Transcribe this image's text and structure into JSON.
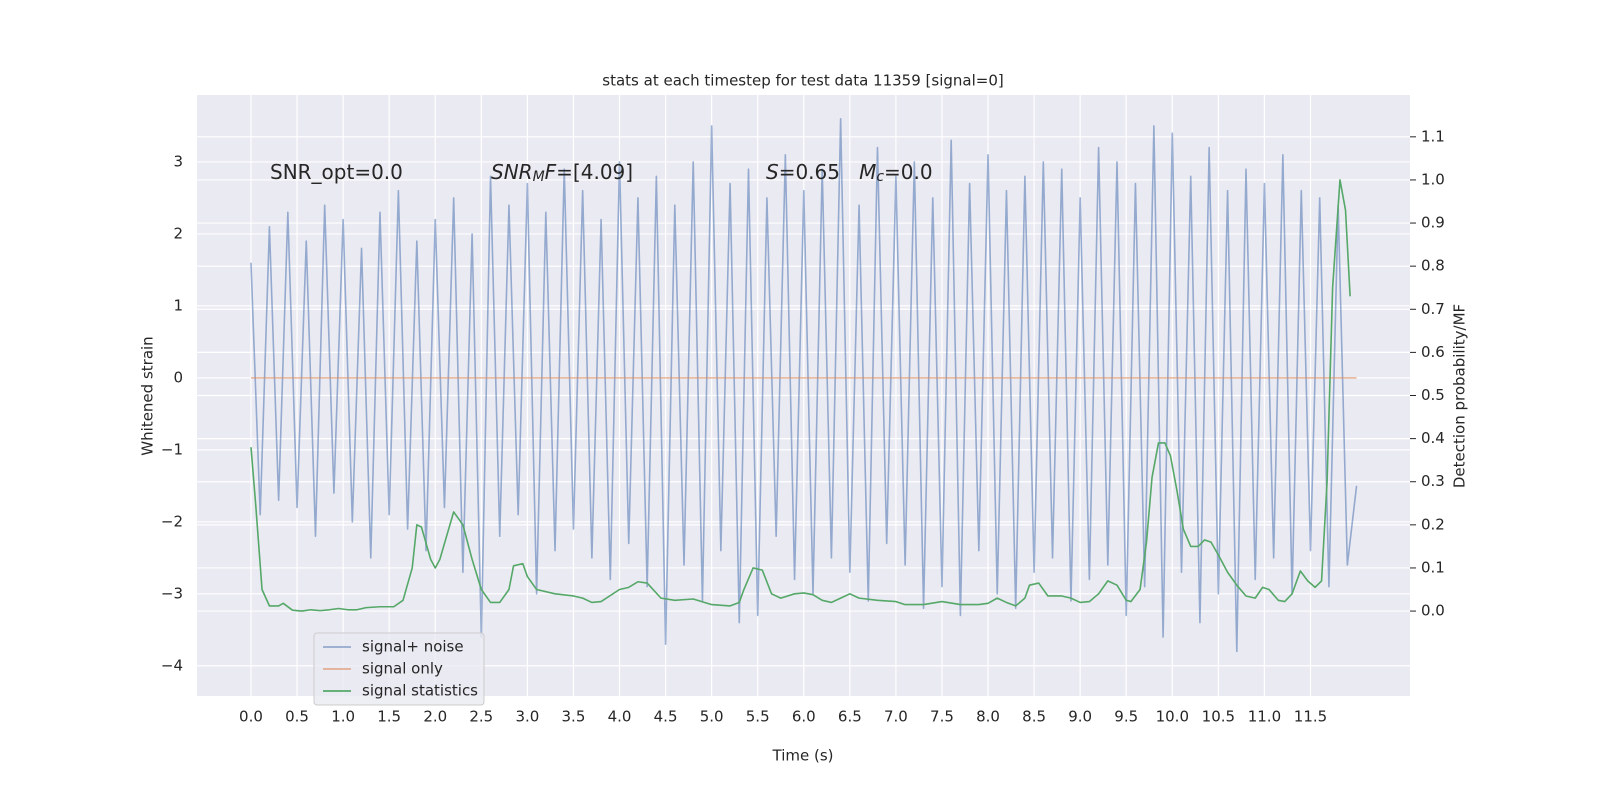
{
  "chart_data": {
    "type": "line",
    "title": "stats at each timestep for test data 11359 [signal=0]",
    "xlabel": "Time (s)",
    "ylabel": "Whitened strain",
    "y2label": "Detection probability/MF",
    "annotations": [
      [
        {
          "text": "SNR_opt=0.0",
          "format": "normal"
        }
      ],
      [
        {
          "text": "SNR",
          "format": "italic"
        },
        {
          "text": "M",
          "format": "sub"
        },
        {
          "text": "F",
          "format": "italic"
        },
        {
          "text": "=[4.09]",
          "format": "normal"
        }
      ],
      [
        {
          "text": "S",
          "format": "italic"
        },
        {
          "text": "=0.65   ",
          "format": "normal"
        },
        {
          "text": "M",
          "format": "italic"
        },
        {
          "text": "c",
          "format": "sub"
        },
        {
          "text": "=0.0",
          "format": "normal"
        }
      ]
    ],
    "xlim": [
      -0.586,
      12.58
    ],
    "ylim": [
      -4.42,
      3.93
    ],
    "y2lim": [
      -0.197,
      1.197
    ],
    "xticks": [
      {
        "value": 0,
        "label": "0.0"
      },
      0.5,
      {
        "value": 1,
        "label": "1.0"
      },
      1.5,
      {
        "value": 2,
        "label": "2.0"
      },
      2.5,
      {
        "value": 3,
        "label": "3.0"
      },
      3.5,
      {
        "value": 4,
        "label": "4.0"
      },
      4.5,
      {
        "value": 5,
        "label": "5.0"
      },
      5.5,
      {
        "value": 6,
        "label": "6.0"
      },
      6.5,
      {
        "value": 7,
        "label": "7.0"
      },
      7.5,
      {
        "value": 8,
        "label": "8.0"
      },
      8.5,
      {
        "value": 9,
        "label": "9.0"
      },
      9.5,
      {
        "value": 10,
        "label": "10.0"
      },
      10.5,
      {
        "value": 11,
        "label": "11.0"
      },
      11.5
    ],
    "yticks": [
      {
        "value": -4,
        "label": "−4"
      },
      {
        "value": -3,
        "label": "−3"
      },
      {
        "value": -2,
        "label": "−2"
      },
      {
        "value": -1,
        "label": "−1"
      },
      0,
      1,
      2,
      3
    ],
    "y2ticks": [
      {
        "value": 0,
        "label": "0.0"
      },
      0.1,
      0.2,
      0.3,
      0.4,
      0.5,
      0.6,
      0.7,
      0.8,
      0.9,
      {
        "value": 1,
        "label": "1.0"
      },
      1.1
    ],
    "grid": true,
    "legend": "lower left",
    "series": [
      {
        "name": "signal+ noise",
        "color": "#4c72b0",
        "alpha": 0.55,
        "x": [
          0,
          0.1,
          0.2,
          0.3,
          0.4,
          0.5,
          0.6,
          0.7,
          0.8,
          0.9,
          1,
          1.1,
          1.2,
          1.3,
          1.4,
          1.5,
          1.6,
          1.7,
          1.8,
          1.9,
          2,
          2.1,
          2.2,
          2.3,
          2.4,
          2.5,
          2.6,
          2.7,
          2.8,
          2.9,
          3,
          3.1,
          3.2,
          3.3,
          3.4,
          3.5,
          3.6,
          3.7,
          3.8,
          3.9,
          4,
          4.1,
          4.2,
          4.3,
          4.4,
          4.5,
          4.6,
          4.7,
          4.8,
          4.9,
          5,
          5.1,
          5.2,
          5.3,
          5.4,
          5.5,
          5.6,
          5.7,
          5.8,
          5.9,
          6,
          6.1,
          6.2,
          6.3,
          6.4,
          6.5,
          6.6,
          6.7,
          6.8,
          6.9,
          7,
          7.1,
          7.2,
          7.3,
          7.4,
          7.5,
          7.6,
          7.7,
          7.8,
          7.9,
          8,
          8.1,
          8.2,
          8.3,
          8.4,
          8.5,
          8.6,
          8.7,
          8.8,
          8.9,
          9,
          9.1,
          9.2,
          9.3,
          9.4,
          9.5,
          9.6,
          9.7,
          9.8,
          9.9,
          10,
          10.1,
          10.2,
          10.3,
          10.4,
          10.5,
          10.6,
          10.7,
          10.8,
          10.9,
          11,
          11.1,
          11.2,
          11.3,
          11.4,
          11.5,
          11.6,
          11.7,
          11.8,
          11.9,
          12
        ],
        "values": [
          1.6,
          -1.9,
          2.1,
          -1.7,
          2.3,
          -1.8,
          1.9,
          -2.2,
          2.4,
          -1.6,
          2.2,
          -2.0,
          1.8,
          -2.5,
          2.3,
          -1.9,
          2.6,
          -2.1,
          1.9,
          -2.4,
          2.2,
          -1.8,
          2.5,
          -2.7,
          2.0,
          -3.6,
          2.8,
          -2.2,
          2.4,
          -1.9,
          2.7,
          -3.0,
          2.3,
          -2.4,
          2.9,
          -2.1,
          2.6,
          -2.5,
          2.2,
          -2.8,
          3.0,
          -2.3,
          2.5,
          -2.9,
          2.8,
          -3.7,
          2.4,
          -2.6,
          3.0,
          -3.1,
          3.5,
          -2.4,
          2.7,
          -3.4,
          2.9,
          -3.3,
          2.5,
          -2.2,
          3.1,
          -2.8,
          2.6,
          -3.0,
          2.9,
          -2.5,
          3.6,
          -2.7,
          2.4,
          -3.1,
          3.2,
          -2.3,
          2.8,
          -2.6,
          3.0,
          -3.2,
          2.5,
          -2.9,
          3.3,
          -3.3,
          2.7,
          -2.4,
          3.1,
          -3.0,
          2.6,
          -3.2,
          2.8,
          -2.7,
          3.0,
          -2.5,
          2.9,
          -3.1,
          2.5,
          -2.8,
          3.2,
          -2.6,
          3.0,
          -3.3,
          2.7,
          -2.9,
          3.5,
          -3.6,
          3.4,
          -2.7,
          2.8,
          -3.4,
          3.2,
          -3.0,
          2.6,
          -3.8,
          2.9,
          -2.8,
          2.7,
          -2.5,
          3.1,
          -3.0,
          2.6,
          -2.4,
          2.5,
          -2.9,
          2.4,
          -2.6,
          -1.5
        ]
      },
      {
        "name": "signal only",
        "color": "#dd8452",
        "alpha": 0.6,
        "x": [
          0,
          12
        ],
        "values": [
          0,
          0
        ]
      },
      {
        "name": "signal statistics",
        "color": "#55a868",
        "alpha": 1,
        "axis": "y2",
        "x": [
          0,
          0.05,
          0.12,
          0.2,
          0.3,
          0.35,
          0.45,
          0.55,
          0.65,
          0.75,
          0.85,
          0.95,
          1.05,
          1.15,
          1.25,
          1.4,
          1.55,
          1.65,
          1.75,
          1.8,
          1.85,
          1.95,
          2,
          2.05,
          2.2,
          2.3,
          2.4,
          2.5,
          2.6,
          2.7,
          2.8,
          2.85,
          2.95,
          3,
          3.1,
          3.3,
          3.5,
          3.6,
          3.7,
          3.8,
          4,
          4.1,
          4.2,
          4.3,
          4.45,
          4.6,
          4.8,
          5,
          5.2,
          5.3,
          5.35,
          5.45,
          5.55,
          5.65,
          5.75,
          5.9,
          6,
          6.1,
          6.2,
          6.3,
          6.4,
          6.5,
          6.6,
          6.8,
          7,
          7.1,
          7.3,
          7.5,
          7.7,
          7.9,
          8,
          8.1,
          8.2,
          8.3,
          8.4,
          8.45,
          8.55,
          8.65,
          8.8,
          8.9,
          9,
          9.1,
          9.2,
          9.3,
          9.4,
          9.5,
          9.55,
          9.65,
          9.72,
          9.78,
          9.85,
          9.92,
          9.98,
          10.05,
          10.12,
          10.2,
          10.28,
          10.35,
          10.42,
          10.5,
          10.6,
          10.7,
          10.8,
          10.9,
          10.98,
          11.05,
          11.15,
          11.22,
          11.3,
          11.39,
          11.47,
          11.55,
          11.62,
          11.68,
          11.74,
          11.82,
          11.88,
          11.93
        ],
        "values": [
          0.38,
          0.25,
          0.05,
          0.012,
          0.012,
          0.018,
          0.002,
          0,
          0.003,
          0.001,
          0.003,
          0.006,
          0.003,
          0.003,
          0.008,
          0.01,
          0.01,
          0.025,
          0.1,
          0.2,
          0.195,
          0.12,
          0.1,
          0.12,
          0.23,
          0.2,
          0.12,
          0.05,
          0.02,
          0.02,
          0.05,
          0.105,
          0.11,
          0.08,
          0.05,
          0.04,
          0.035,
          0.03,
          0.02,
          0.022,
          0.05,
          0.055,
          0.068,
          0.065,
          0.03,
          0.025,
          0.028,
          0.015,
          0.012,
          0.02,
          0.05,
          0.1,
          0.095,
          0.04,
          0.03,
          0.04,
          0.042,
          0.038,
          0.025,
          0.02,
          0.03,
          0.04,
          0.03,
          0.025,
          0.022,
          0.015,
          0.015,
          0.022,
          0.015,
          0.015,
          0.018,
          0.03,
          0.02,
          0.012,
          0.03,
          0.06,
          0.065,
          0.035,
          0.035,
          0.03,
          0.02,
          0.022,
          0.04,
          0.07,
          0.06,
          0.025,
          0.022,
          0.05,
          0.16,
          0.31,
          0.39,
          0.39,
          0.36,
          0.28,
          0.19,
          0.15,
          0.15,
          0.165,
          0.16,
          0.13,
          0.09,
          0.06,
          0.035,
          0.03,
          0.055,
          0.05,
          0.025,
          0.022,
          0.04,
          0.093,
          0.07,
          0.055,
          0.07,
          0.3,
          0.75,
          1.0,
          0.93,
          0.73
        ]
      }
    ]
  }
}
